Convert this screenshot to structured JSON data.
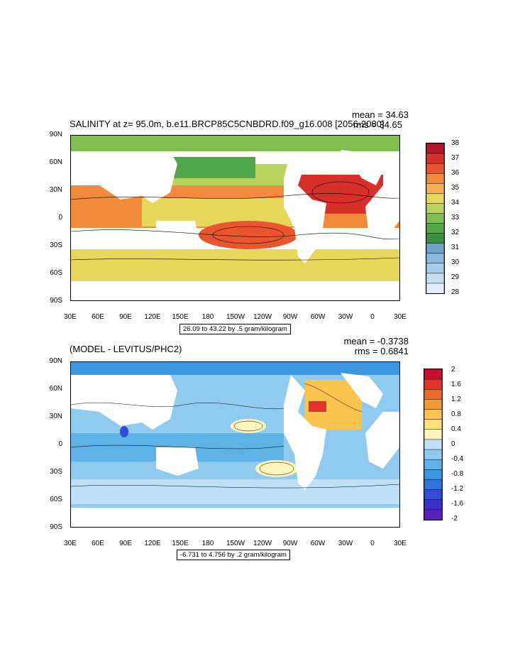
{
  "panels": [
    {
      "id": "salinity",
      "title": "SALINITY at z=  95.0m, b.e11.BRCP85C5CNBDRD.f09_g16.008 [2056-2080]",
      "mean": "mean = 34.63",
      "rms": "rms = 34.65",
      "range_label": "26.09 to 43.22 by .5 gram/kilogram",
      "lat_labels": [
        "90N",
        "60N",
        "30N",
        "0",
        "30S",
        "60S",
        "90S"
      ],
      "lon_labels": [
        "30E",
        "60E",
        "90E",
        "120E",
        "150E",
        "180",
        "150W",
        "120W",
        "90W",
        "60W",
        "30W",
        "0",
        "30E"
      ],
      "colorbar": {
        "labels": [
          "38",
          "37",
          "36",
          "35",
          "34",
          "33",
          "32",
          "31",
          "30",
          "29",
          "28"
        ],
        "colors": [
          "#b2182b",
          "#d6302a",
          "#e8552e",
          "#f28a3c",
          "#f7b153",
          "#e6d75a",
          "#b9d35a",
          "#80bf4f",
          "#4fa74a",
          "#3b8f43",
          "#6ea3c9",
          "#89b7dd",
          "#a7cbe9",
          "#c6def3",
          "#e0eefb"
        ]
      },
      "regions": {
        "arctic": "#80bf4f",
        "north_pacific": "#b9d35a",
        "subtropical": "#f28a3c",
        "tropical": "#e6d75a",
        "south_pac_gyre": "#e8552e",
        "north_atl": "#d6302a",
        "southern": "#e6d75a",
        "subpolar": "#4fa74a"
      }
    },
    {
      "id": "difference",
      "title": "(MODEL - LEVITUS/PHC2)",
      "mean": "mean = -0.3738",
      "rms": "rms = 0.6841",
      "range_label": "-6.731 to 4.756 by .2 gram/kilogram",
      "lat_labels": [
        "90N",
        "60N",
        "30N",
        "0",
        "30S",
        "60S",
        "90S"
      ],
      "lon_labels": [
        "30E",
        "60E",
        "90E",
        "120E",
        "150E",
        "180",
        "150W",
        "120W",
        "90W",
        "60W",
        "30W",
        "0",
        "30E"
      ],
      "colorbar": {
        "labels": [
          "2",
          "1.6",
          "1.2",
          "0.8",
          "0.4",
          "0",
          "-0.4",
          "-0.8",
          "-1.2",
          "-1.6",
          "-2"
        ],
        "colors": [
          "#c8102e",
          "#e2322a",
          "#ee6a2a",
          "#f59a34",
          "#fbc44e",
          "#fde27a",
          "#fff4bb",
          "#bfe0f6",
          "#8fcbee",
          "#5eb3e6",
          "#3a97df",
          "#2f75d8",
          "#2f4fd0",
          "#3b2fc8",
          "#5a1fbf"
        ]
      },
      "regions": {
        "ocean": "#8fcbee",
        "deep": "#5eb3e6",
        "arctic": "#3a97df",
        "north_atl": "#fbc44e",
        "north_atl_hot": "#e2322a",
        "tropic_pos": "#fff4bb",
        "southern": "#bfe0f6",
        "bay": "#2f4fd0"
      }
    }
  ]
}
